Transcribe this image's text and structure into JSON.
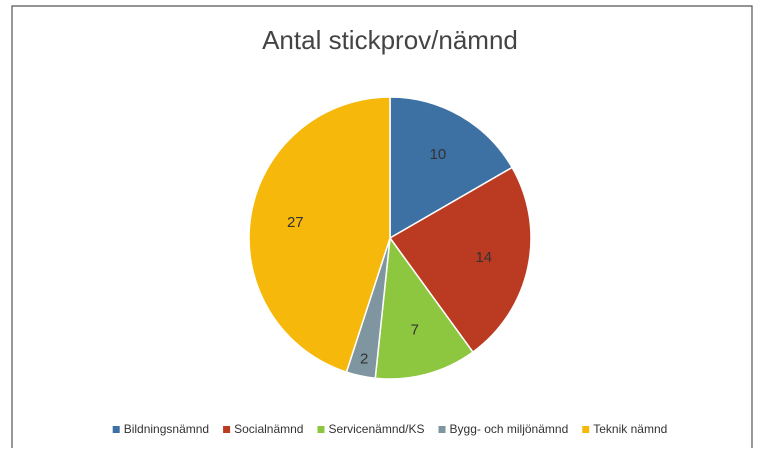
{
  "chart_data": {
    "type": "pie",
    "title": "Antal stickprov/nämnd",
    "categories": [
      "Bildningsnämnd",
      "Socialnämnd",
      "Servicenämnd/KS",
      "Bygg- och miljönämnd",
      "Teknik nämnd"
    ],
    "values": [
      10,
      14,
      7,
      2,
      27
    ],
    "colors": [
      "#3d70a3",
      "#bb3a22",
      "#8dc63f",
      "#7f95a0",
      "#f6b80a"
    ],
    "legend": "bottom"
  }
}
